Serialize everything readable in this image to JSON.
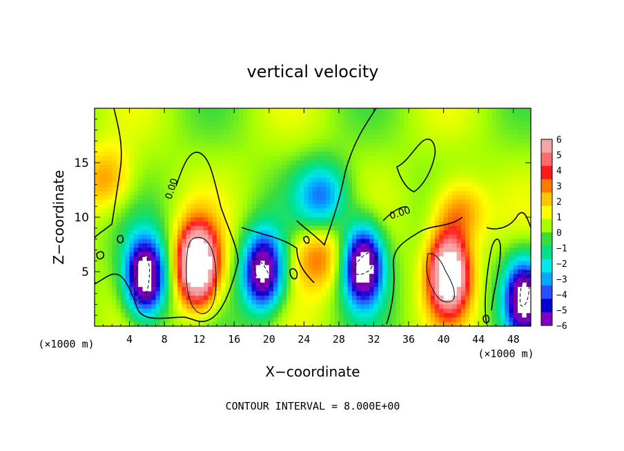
{
  "chart_data": {
    "type": "heatmap",
    "title": "vertical velocity",
    "xlabel": "X−coordinate",
    "ylabel": "Z−coordinate",
    "x_unit_note": "(×1000 m)",
    "z_unit_note": "(×1000 m)",
    "xlim": [
      0,
      50
    ],
    "ylim": [
      0,
      20
    ],
    "x_ticks": [
      4,
      8,
      12,
      16,
      20,
      24,
      28,
      32,
      36,
      40,
      44,
      48
    ],
    "y_ticks": [
      5,
      10,
      15
    ],
    "colorbar": {
      "range": [
        -6,
        6
      ],
      "tick_labels": [
        "6",
        "5",
        "4",
        "3",
        "2",
        "1",
        "0",
        "−1",
        "−2",
        "−3",
        "−4",
        "−5",
        "−6"
      ],
      "colors": [
        "#f4a6a6",
        "#ff6a6a",
        "#ff1a1a",
        "#ff7a00",
        "#ffc400",
        "#ffff00",
        "#a8ff00",
        "#3cdc3c",
        "#00e08a",
        "#00e8e8",
        "#00aaff",
        "#2a50ff",
        "#0000d0",
        "#8000c0"
      ]
    },
    "contour_label": "0.00",
    "contour_interval_text": "CONTOUR INTERVAL = 8.000E+00",
    "features": [
      {
        "x": 5.8,
        "z": 4.5,
        "value": -9
      },
      {
        "x": 11.8,
        "z": 5.6,
        "value": 10
      },
      {
        "x": 19.3,
        "z": 5.0,
        "value": -8
      },
      {
        "x": 26.1,
        "z": 12.0,
        "value": -4
      },
      {
        "x": 30.8,
        "z": 5.6,
        "value": -9
      },
      {
        "x": 40.6,
        "z": 4.8,
        "value": 9
      },
      {
        "x": 49.2,
        "z": 2.6,
        "value": -8
      },
      {
        "x": 41.8,
        "z": 10.5,
        "value": 3
      },
      {
        "x": 1.4,
        "z": 13.5,
        "value": 2.5
      },
      {
        "x": 25.5,
        "z": 6.3,
        "value": 3
      }
    ]
  }
}
